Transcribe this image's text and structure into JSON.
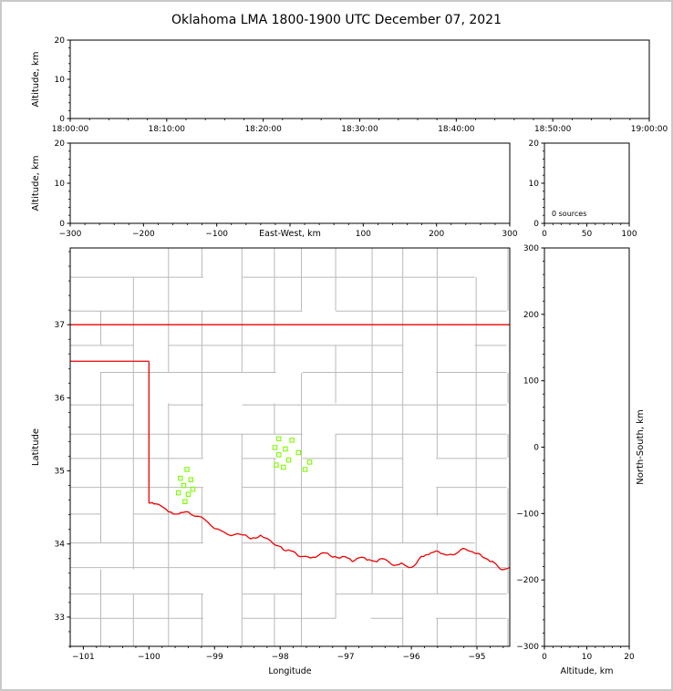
{
  "title": "Oklahoma LMA 1800-1900 UTC December 07, 2021",
  "colors": {
    "background": "#ffffff",
    "frame_border": "#c9c9c9",
    "axis": "#000000",
    "county_line": "#b9b9b9",
    "state_border": "#ee0000",
    "source_marker": "#7cfc00"
  },
  "chart_data": [
    {
      "id": "time_height",
      "type": "scatter",
      "title": "",
      "xlabel": "",
      "ylabel": "Altitude, km",
      "xlim": [
        0,
        60
      ],
      "xticks": [
        0,
        10,
        20,
        30,
        40,
        50,
        60
      ],
      "xticklabels": [
        "18:00:00",
        "18:10:00",
        "18:20:00",
        "18:30:00",
        "18:40:00",
        "18:50:00",
        "19:00:00"
      ],
      "ylim": [
        0,
        20
      ],
      "yticks": [
        0,
        10,
        20
      ],
      "points": []
    },
    {
      "id": "ew_height",
      "type": "scatter",
      "xlabel": "East-West, km",
      "ylabel": "Altitude, km",
      "xlim": [
        -300,
        300
      ],
      "xticks": [
        -300,
        -200,
        -100,
        0,
        100,
        200,
        300
      ],
      "ylim": [
        0,
        20
      ],
      "yticks": [
        0,
        10,
        20
      ],
      "points": []
    },
    {
      "id": "alt_histogram",
      "type": "line",
      "xlabel": "",
      "ylabel": "",
      "xlim": [
        0,
        100
      ],
      "xticks": [
        0,
        50,
        100
      ],
      "ylim": [
        0,
        20
      ],
      "yticks": [
        0,
        10,
        20
      ],
      "annotation": "0 sources",
      "points": []
    },
    {
      "id": "plan_view_map",
      "type": "scatter",
      "xlabel": "Longitude",
      "ylabel": "Latitude",
      "xlim": [
        -101.2,
        -94.5
      ],
      "xticks": [
        -101,
        -100,
        -99,
        -98,
        -97,
        -96,
        -95
      ],
      "ylim": [
        32.6,
        38.05
      ],
      "yticks": [
        33,
        34,
        35,
        36,
        37
      ],
      "points": [
        [
          -99.42,
          35.02
        ],
        [
          -99.52,
          34.9
        ],
        [
          -99.36,
          34.88
        ],
        [
          -99.47,
          34.8
        ],
        [
          -99.55,
          34.7
        ],
        [
          -99.4,
          34.68
        ],
        [
          -99.33,
          34.75
        ],
        [
          -99.45,
          34.58
        ],
        [
          -98.02,
          35.44
        ],
        [
          -97.82,
          35.42
        ],
        [
          -98.08,
          35.32
        ],
        [
          -97.92,
          35.3
        ],
        [
          -98.02,
          35.22
        ],
        [
          -97.72,
          35.25
        ],
        [
          -97.87,
          35.15
        ],
        [
          -98.06,
          35.08
        ],
        [
          -97.95,
          35.05
        ],
        [
          -97.62,
          35.02
        ],
        [
          -97.55,
          35.12
        ]
      ],
      "state_border_lines": [
        [
          [
            -101.2,
            37.0
          ],
          [
            -94.5,
            37.0
          ]
        ],
        [
          [
            -101.2,
            36.5
          ],
          [
            -100.0,
            36.5
          ]
        ],
        [
          [
            -100.0,
            36.5
          ],
          [
            -100.0,
            34.56
          ]
        ]
      ],
      "red_river_line": [
        [
          -100.0,
          34.56
        ],
        [
          -99.9,
          34.55
        ],
        [
          -99.7,
          34.44
        ],
        [
          -99.55,
          34.41
        ],
        [
          -99.4,
          34.44
        ],
        [
          -99.2,
          34.37
        ],
        [
          -99.0,
          34.21
        ],
        [
          -98.8,
          34.13
        ],
        [
          -98.6,
          34.13
        ],
        [
          -98.45,
          34.07
        ],
        [
          -98.3,
          34.12
        ],
        [
          -98.1,
          34.0
        ],
        [
          -97.95,
          33.92
        ],
        [
          -97.8,
          33.9
        ],
        [
          -97.65,
          33.83
        ],
        [
          -97.5,
          33.82
        ],
        [
          -97.35,
          33.88
        ],
        [
          -97.2,
          33.82
        ],
        [
          -97.05,
          33.83
        ],
        [
          -96.9,
          33.76
        ],
        [
          -96.75,
          33.82
        ],
        [
          -96.6,
          33.77
        ],
        [
          -96.45,
          33.8
        ],
        [
          -96.3,
          33.72
        ],
        [
          -96.15,
          33.74
        ],
        [
          -96.0,
          33.68
        ],
        [
          -95.85,
          33.83
        ],
        [
          -95.7,
          33.88
        ],
        [
          -95.55,
          33.87
        ],
        [
          -95.4,
          33.86
        ],
        [
          -95.25,
          33.92
        ],
        [
          -95.1,
          33.9
        ],
        [
          -94.95,
          33.86
        ],
        [
          -94.8,
          33.76
        ],
        [
          -94.65,
          33.66
        ],
        [
          -94.5,
          33.68
        ]
      ]
    },
    {
      "id": "ns_height",
      "type": "scatter",
      "xlabel": "Altitude, km",
      "ylabel_right": "North-South, km",
      "xlim": [
        0,
        20
      ],
      "xticks": [
        0,
        10,
        20
      ],
      "ylim": [
        -300,
        300
      ],
      "yticks": [
        -300,
        -200,
        -100,
        0,
        100,
        200,
        300
      ],
      "points": []
    }
  ]
}
